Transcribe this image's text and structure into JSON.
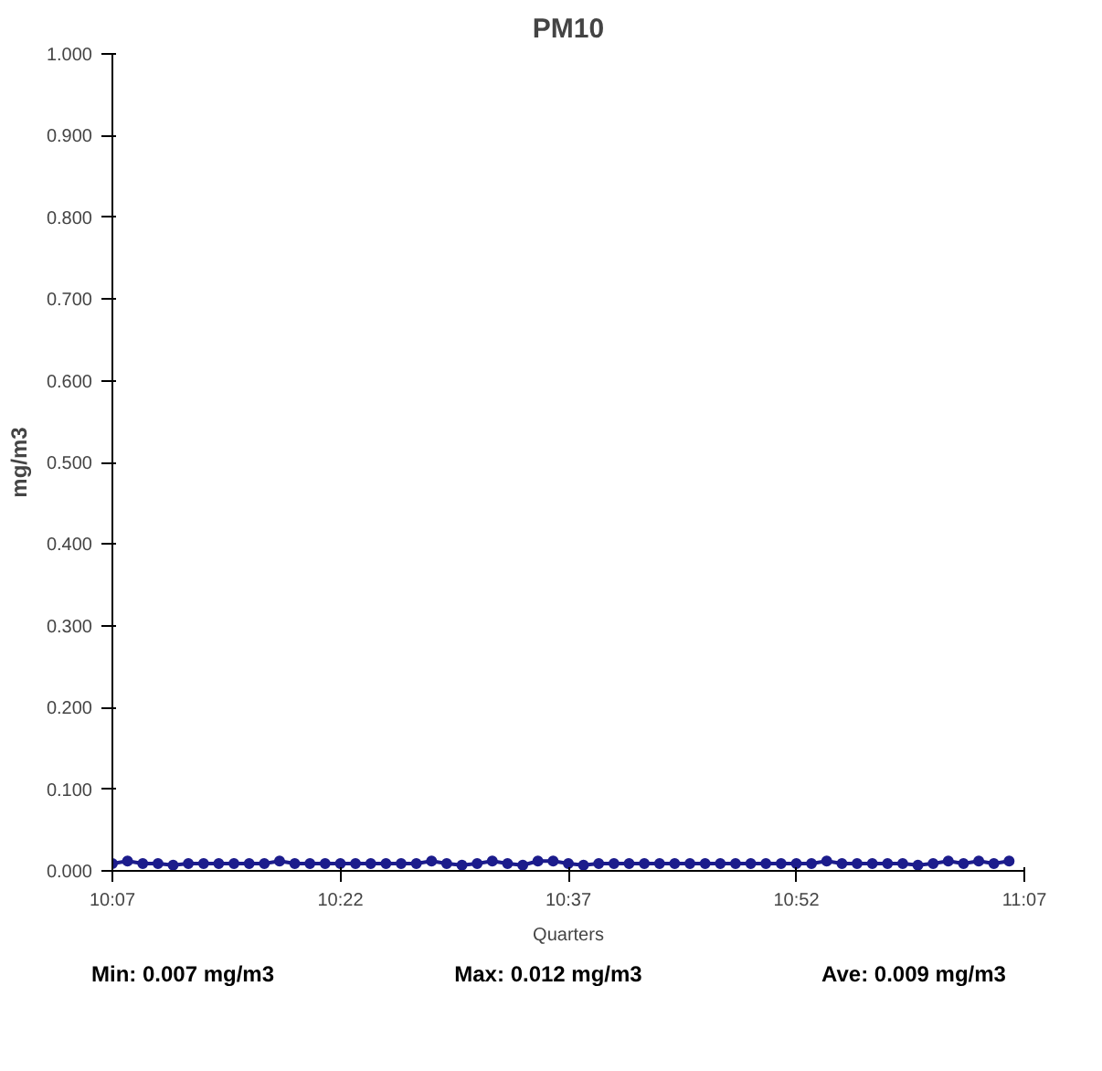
{
  "chart_data": {
    "type": "line",
    "title": "PM10",
    "xlabel": "Quarters",
    "ylabel": "mg/m3",
    "x": [
      10.1167,
      10.1333,
      10.15,
      10.1667,
      10.1833,
      10.2,
      10.2167,
      10.2333,
      10.25,
      10.2667,
      10.2833,
      10.3,
      10.3167,
      10.3333,
      10.35,
      10.3667,
      10.3833,
      10.4,
      10.4167,
      10.4333,
      10.45,
      10.4667,
      10.4833,
      10.5,
      10.5167,
      10.5333,
      10.55,
      10.5667,
      10.5833,
      10.6,
      10.6167,
      10.6333,
      10.65,
      10.6667,
      10.6833,
      10.7,
      10.7167,
      10.7333,
      10.75,
      10.7667,
      10.7833,
      10.8,
      10.8167,
      10.8333,
      10.85,
      10.8667,
      10.8833,
      10.9,
      10.9167,
      10.9333,
      10.95,
      10.9667,
      10.9833,
      11.0,
      11.0167,
      11.0333,
      11.05,
      11.0667,
      11.0833,
      11.1
    ],
    "series": [
      {
        "color": "#1c1c8c",
        "values": [
          0.009,
          0.012,
          0.009,
          0.009,
          0.007,
          0.009,
          0.009,
          0.009,
          0.009,
          0.009,
          0.009,
          0.012,
          0.009,
          0.009,
          0.009,
          0.009,
          0.009,
          0.009,
          0.009,
          0.009,
          0.009,
          0.012,
          0.009,
          0.007,
          0.009,
          0.012,
          0.009,
          0.007,
          0.012,
          0.012,
          0.009,
          0.007,
          0.009,
          0.009,
          0.009,
          0.009,
          0.009,
          0.009,
          0.009,
          0.009,
          0.009,
          0.009,
          0.009,
          0.009,
          0.009,
          0.009,
          0.009,
          0.012,
          0.009,
          0.009,
          0.009,
          0.009,
          0.009,
          0.007,
          0.009,
          0.012,
          0.009,
          0.012,
          0.009,
          0.012
        ]
      }
    ],
    "xlim": [
      10.1167,
      11.1167
    ],
    "xticks": [
      {
        "value": 10.1167,
        "label": "10:07"
      },
      {
        "value": 10.3667,
        "label": "10:22"
      },
      {
        "value": 10.6167,
        "label": "10:37"
      },
      {
        "value": 10.8667,
        "label": "10:52"
      },
      {
        "value": 11.1167,
        "label": "11:07"
      }
    ],
    "ylim": [
      0,
      1
    ],
    "yticks": [
      {
        "value": 0,
        "label": "0.000"
      },
      {
        "value": 0.1,
        "label": "0.100"
      },
      {
        "value": 0.2,
        "label": "0.200"
      },
      {
        "value": 0.3,
        "label": "0.300"
      },
      {
        "value": 0.4,
        "label": "0.400"
      },
      {
        "value": 0.5,
        "label": "0.500"
      },
      {
        "value": 0.6,
        "label": "0.600"
      },
      {
        "value": 0.7,
        "label": "0.700"
      },
      {
        "value": 0.8,
        "label": "0.800"
      },
      {
        "value": 0.9,
        "label": "0.900"
      },
      {
        "value": 1,
        "label": "1.000"
      }
    ],
    "marker": "circle",
    "line_style": "solid",
    "grid": false,
    "annotations": [
      "Min: 0.007 mg/m3",
      "Max: 0.012 mg/m3",
      "Ave: 0.009 mg/m3"
    ]
  }
}
